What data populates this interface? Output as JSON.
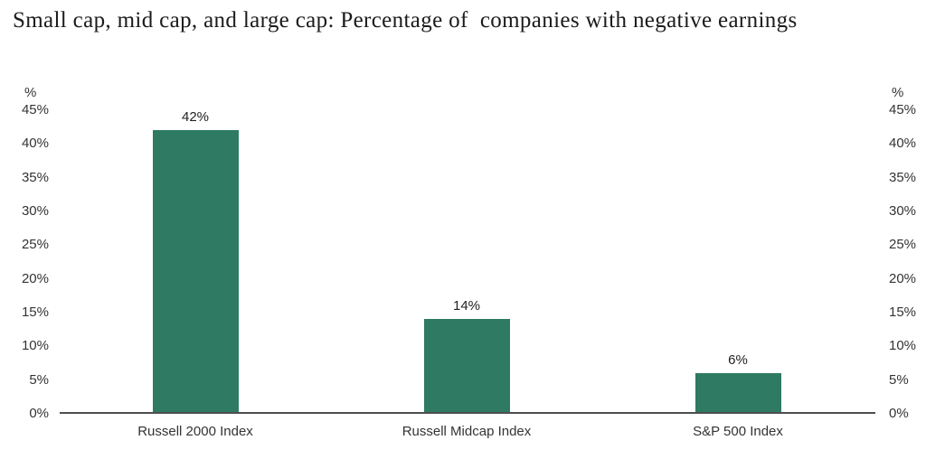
{
  "title": "Small cap, mid cap, and large cap: Percentage of  companies with negative earnings",
  "chart_data": {
    "type": "bar",
    "title": "Small cap, mid cap, and large cap: Percentage of companies with negative earnings",
    "categories": [
      "Russell 2000 Index",
      "Russell Midcap Index",
      "S&P 500 Index"
    ],
    "values": [
      42,
      14,
      6
    ],
    "data_labels": [
      "42%",
      "14%",
      "6%"
    ],
    "xlabel": "",
    "ylabel": "%",
    "axis_unit": "%",
    "ylim": [
      0,
      45
    ],
    "y_ticks": [
      0,
      5,
      10,
      15,
      20,
      25,
      30,
      35,
      40,
      45
    ],
    "y_tick_labels": [
      "0%",
      "5%",
      "10%",
      "15%",
      "20%",
      "25%",
      "30%",
      "35%",
      "40%",
      "45%"
    ],
    "dual_y_axis": true,
    "grid": false,
    "legend": false,
    "bar_color": "#2E7A63",
    "axis_line_color": "#4f4f4f"
  }
}
